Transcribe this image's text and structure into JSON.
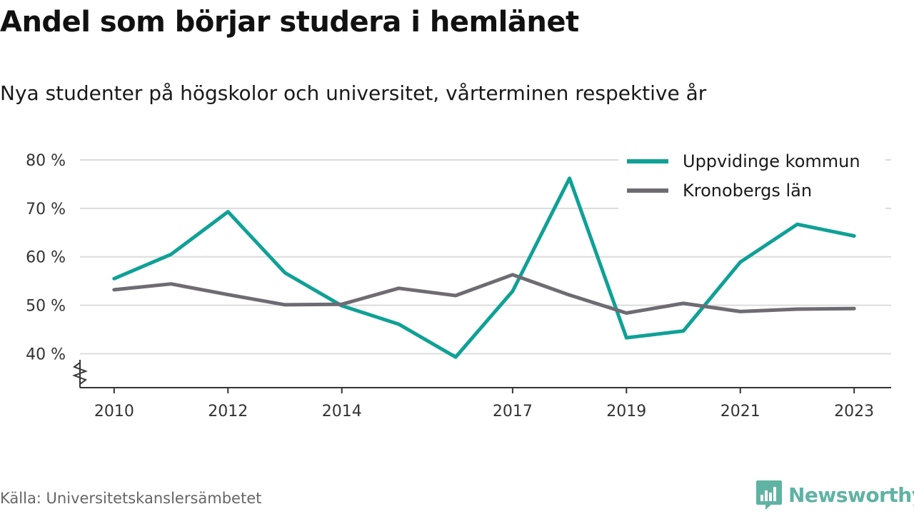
{
  "title": "Andel som börjar studera i hemlänet",
  "subtitle": "Nya studenter på högskolor och universitet, vårterminen respektive år",
  "source": "Källa: Universitetskanslersämbetet",
  "brand": {
    "name": "Newsworthy",
    "icon": "newsworthy-logo-icon",
    "color": "#5fb3a3"
  },
  "chart_data": {
    "type": "line",
    "x": [
      2010,
      2011,
      2012,
      2013,
      2014,
      2015,
      2016,
      2017,
      2018,
      2019,
      2020,
      2021,
      2022,
      2023
    ],
    "x_tick_labels": [
      "2010",
      "2012",
      "2014",
      "2017",
      "2019",
      "2021",
      "2023"
    ],
    "y_tick_labels": [
      "40 %",
      "50 %",
      "60 %",
      "70 %",
      "80 %"
    ],
    "y_ticks": [
      40,
      50,
      60,
      70,
      80
    ],
    "ylim": [
      33,
      85
    ],
    "xlim": [
      2009.4,
      2023.65
    ],
    "y_axis_break": true,
    "grid": true,
    "legend_position": "top-right",
    "series": [
      {
        "name": "Uppvidinge kommun",
        "color": "#0fa196",
        "values": [
          55.5,
          60.5,
          69.3,
          56.7,
          49.9,
          46.1,
          39.3,
          52.9,
          76.2,
          43.3,
          44.7,
          58.9,
          66.7,
          64.3
        ]
      },
      {
        "name": "Kronobergs län",
        "color": "#6e6c72",
        "values": [
          53.2,
          54.4,
          52.2,
          50.1,
          50.2,
          53.5,
          52.0,
          56.3,
          52.1,
          48.4,
          50.4,
          48.7,
          49.2,
          49.3
        ]
      }
    ]
  }
}
